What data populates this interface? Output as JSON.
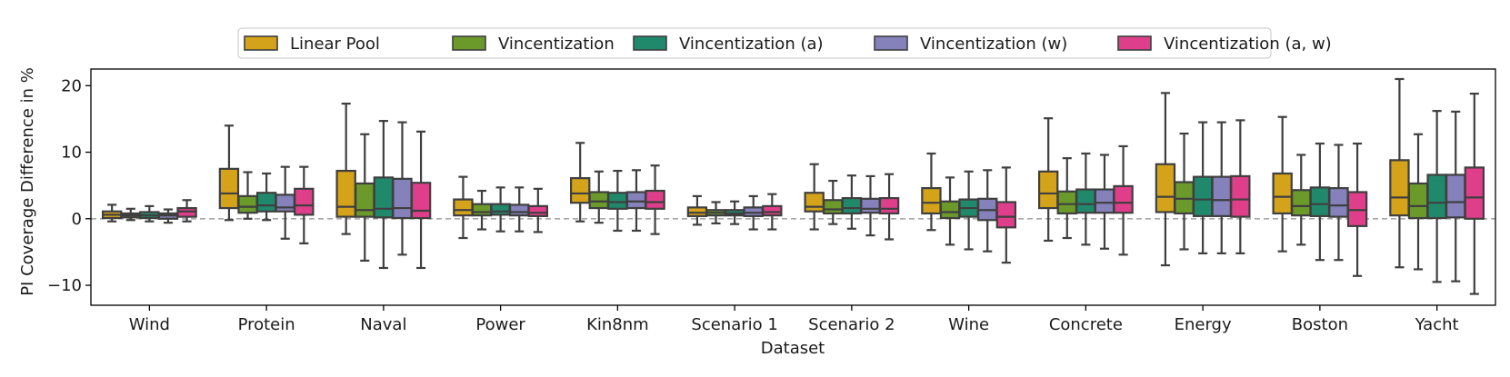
{
  "chart_data": {
    "type": "boxplot",
    "title": "",
    "xlabel": "Dataset",
    "ylabel": "PI Coverage Difference in %",
    "ylim": [
      -13,
      22.5
    ],
    "yticks": [
      -10,
      0,
      10,
      20
    ],
    "ytick_labels": [
      "−10",
      "0",
      "10",
      "20"
    ],
    "reference_line": 0,
    "legend_position": "top-center",
    "series": [
      {
        "name": "Linear Pool",
        "color": "#d4a31a"
      },
      {
        "name": "Vincentization",
        "color": "#6b9a2b"
      },
      {
        "name": "Vincentization (a)",
        "color": "#21896b"
      },
      {
        "name": "Vincentization (w)",
        "color": "#8481bb"
      },
      {
        "name": "Vincentization (a, w)",
        "color": "#df3f8a"
      }
    ],
    "categories": [
      "Wind",
      "Protein",
      "Naval",
      "Power",
      "Kin8nm",
      "Scenario 1",
      "Scenario 2",
      "Wine",
      "Concrete",
      "Energy",
      "Boston",
      "Yacht"
    ],
    "boxes": [
      [
        [
          -0.4,
          0.1,
          0.6,
          1.1,
          2.1
        ],
        [
          -0.2,
          0.2,
          0.5,
          0.8,
          1.5
        ],
        [
          -0.4,
          0.1,
          0.5,
          1.0,
          1.9
        ],
        [
          -0.6,
          0.0,
          0.5,
          0.8,
          1.4
        ],
        [
          -0.4,
          0.3,
          1.1,
          1.6,
          2.8
        ]
      ],
      [
        [
          -0.2,
          1.6,
          3.8,
          7.5,
          14.0
        ],
        [
          0.0,
          0.9,
          1.8,
          3.4,
          7.0
        ],
        [
          -0.2,
          1.1,
          2.0,
          3.9,
          6.8
        ],
        [
          -3.0,
          1.1,
          1.7,
          3.6,
          7.8
        ],
        [
          -3.7,
          0.6,
          2.0,
          4.5,
          7.8
        ]
      ],
      [
        [
          -2.3,
          0.3,
          1.8,
          7.2,
          17.3
        ],
        [
          -6.3,
          0.3,
          1.3,
          5.3,
          12.7
        ],
        [
          -7.4,
          0.2,
          1.5,
          6.2,
          14.7
        ],
        [
          -5.4,
          0.1,
          1.6,
          6.0,
          14.5
        ],
        [
          -7.4,
          0.1,
          1.2,
          5.4,
          13.1
        ]
      ],
      [
        [
          -2.9,
          0.5,
          1.3,
          2.9,
          6.3
        ],
        [
          -1.6,
          0.5,
          1.0,
          2.2,
          4.2
        ],
        [
          -1.9,
          0.6,
          1.1,
          2.2,
          4.7
        ],
        [
          -1.9,
          0.5,
          1.0,
          2.1,
          4.7
        ],
        [
          -2.0,
          0.4,
          0.9,
          1.9,
          4.5
        ]
      ],
      [
        [
          -0.4,
          2.4,
          3.8,
          6.1,
          11.4
        ],
        [
          -0.6,
          1.6,
          2.6,
          4.0,
          7.1
        ],
        [
          -1.8,
          1.5,
          2.5,
          3.9,
          7.2
        ],
        [
          -1.8,
          1.6,
          2.6,
          4.0,
          7.3
        ],
        [
          -2.3,
          1.5,
          2.5,
          4.2,
          8.0
        ]
      ],
      [
        [
          -0.9,
          0.4,
          0.9,
          1.7,
          3.4
        ],
        [
          -0.7,
          0.5,
          0.9,
          1.3,
          2.5
        ],
        [
          -0.8,
          0.5,
          0.8,
          1.3,
          2.6
        ],
        [
          -1.6,
          0.4,
          0.9,
          1.7,
          3.4
        ],
        [
          -1.6,
          0.5,
          1.0,
          1.9,
          3.7
        ]
      ],
      [
        [
          -1.6,
          1.1,
          1.8,
          3.9,
          8.2
        ],
        [
          -0.8,
          0.8,
          1.4,
          2.8,
          5.7
        ],
        [
          -1.5,
          0.8,
          1.6,
          3.1,
          6.5
        ],
        [
          -2.5,
          0.9,
          1.5,
          3.0,
          6.4
        ],
        [
          -3.1,
          0.8,
          1.5,
          3.1,
          6.7
        ]
      ],
      [
        [
          -1.7,
          0.8,
          2.4,
          4.6,
          9.8
        ],
        [
          -3.9,
          0.1,
          1.0,
          2.6,
          6.2
        ],
        [
          -4.6,
          0.3,
          1.6,
          2.9,
          7.1
        ],
        [
          -4.9,
          -0.2,
          1.3,
          3.0,
          7.3
        ],
        [
          -6.6,
          -1.3,
          0.3,
          2.5,
          7.7
        ]
      ],
      [
        [
          -3.3,
          1.6,
          3.8,
          7.1,
          15.1
        ],
        [
          -2.9,
          0.8,
          2.2,
          4.1,
          9.1
        ],
        [
          -3.9,
          0.9,
          2.2,
          4.4,
          9.8
        ],
        [
          -4.5,
          0.9,
          2.4,
          4.4,
          9.6
        ],
        [
          -5.4,
          0.9,
          2.4,
          4.9,
          10.9
        ]
      ],
      [
        [
          -7.0,
          1.0,
          3.3,
          8.2,
          18.9
        ],
        [
          -4.6,
          0.8,
          3.0,
          5.5,
          12.8
        ],
        [
          -5.2,
          0.4,
          2.9,
          6.3,
          14.5
        ],
        [
          -5.2,
          0.4,
          2.8,
          6.3,
          14.5
        ],
        [
          -5.2,
          0.3,
          2.9,
          6.4,
          14.8
        ]
      ],
      [
        [
          -4.9,
          0.8,
          3.3,
          6.8,
          15.3
        ],
        [
          -3.9,
          0.5,
          1.9,
          4.3,
          9.6
        ],
        [
          -6.2,
          0.4,
          2.2,
          4.7,
          11.3
        ],
        [
          -6.2,
          0.3,
          2.0,
          4.6,
          11.1
        ],
        [
          -8.6,
          -1.1,
          1.3,
          4.0,
          11.3
        ]
      ],
      [
        [
          -7.3,
          0.5,
          3.2,
          8.8,
          21.0
        ],
        [
          -7.6,
          0.1,
          1.9,
          5.3,
          12.7
        ],
        [
          -9.5,
          0.1,
          2.4,
          6.6,
          16.2
        ],
        [
          -9.4,
          0.2,
          2.5,
          6.6,
          16.1
        ],
        [
          -11.3,
          0.0,
          3.2,
          7.7,
          18.8
        ]
      ]
    ]
  }
}
